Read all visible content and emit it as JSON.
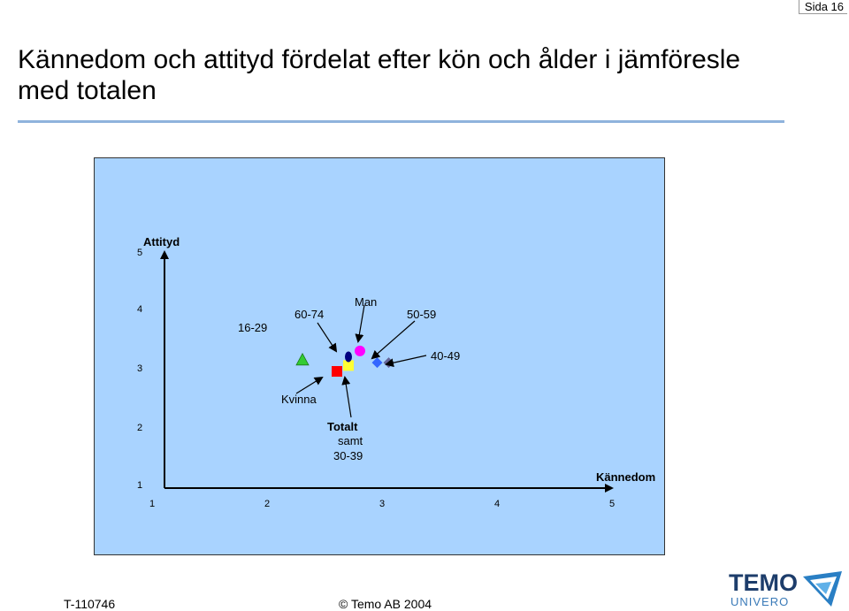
{
  "page": {
    "page_label": "Sida 16",
    "title": "Kännedom och attityd fördelat efter kön och ålder i jämföresle med totalen",
    "footer_left": "T-110746",
    "footer_center": "© Temo AB 2004",
    "logo_text": "TEMO",
    "logo_subtext": "UNIVERO"
  },
  "colors": {
    "background": "#a9d3ff",
    "title_rule": "#8fb3dc",
    "axis": "#000000"
  },
  "chart_data": {
    "type": "scatter",
    "xlabel": "Kännedom",
    "ylabel": "Attityd",
    "xlim": [
      1,
      5
    ],
    "ylim": [
      1,
      5
    ],
    "x_ticks": [
      "1",
      "2",
      "3",
      "4",
      "5"
    ],
    "y_ticks": [
      "1",
      "2",
      "3",
      "4",
      "5"
    ],
    "series": [
      {
        "name": "16-29",
        "x": 2.2,
        "y": 3.2,
        "marker": "triangle",
        "color": "#33cc33"
      },
      {
        "name": "Kvinna",
        "x": 2.5,
        "y": 3.0,
        "marker": "square",
        "color": "#ff0000"
      },
      {
        "name": "Totalt samt 30-39",
        "x": 2.6,
        "y": 3.1,
        "marker": "square",
        "color": "#ffff33"
      },
      {
        "name": "60-74",
        "x": 2.6,
        "y": 3.25,
        "marker": "ellipse",
        "color": "#000080"
      },
      {
        "name": "Man",
        "x": 2.7,
        "y": 3.35,
        "marker": "circle",
        "color": "#ff00ff"
      },
      {
        "name": "50-59",
        "x": 2.85,
        "y": 3.15,
        "marker": "diamond",
        "color": "#3366ff"
      },
      {
        "name": "40-49",
        "x": 2.95,
        "y": 3.15,
        "marker": "diamond",
        "color": "#666699"
      }
    ],
    "annotations": [
      {
        "text": "16-29",
        "line2": ""
      },
      {
        "text": "60-74",
        "line2": ""
      },
      {
        "text": "Man",
        "line2": ""
      },
      {
        "text": "50-59",
        "line2": ""
      },
      {
        "text": "40-49",
        "line2": ""
      },
      {
        "text": "Kvinna",
        "line2": ""
      },
      {
        "text": "Totalt",
        "line2": "samt",
        "line3": "30-39"
      }
    ]
  }
}
